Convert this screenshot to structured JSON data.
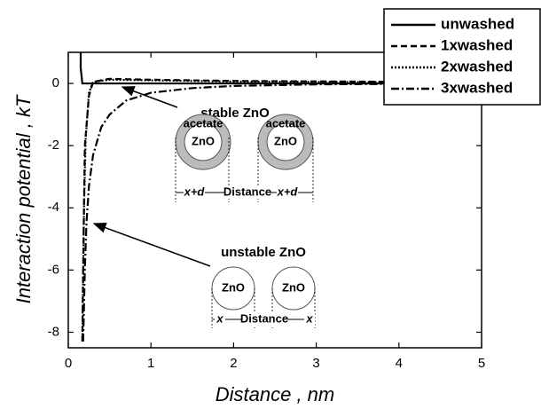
{
  "chart_data": {
    "type": "line",
    "xlabel": "Distance , nm",
    "ylabel": "Interaction potential , kT",
    "xlim": [
      0,
      5
    ],
    "xticks": [
      0,
      1,
      2,
      3,
      4,
      5
    ],
    "ylim": [
      -8.5,
      1
    ],
    "yticks": [
      0,
      -2,
      -4,
      -6,
      -8
    ],
    "legend": "upper right",
    "series": [
      {
        "name": "unwashed",
        "color": "#000000",
        "dash": "solid",
        "x": [
          0.15,
          0.15,
          0.17,
          1,
          5
        ],
        "values": [
          1,
          0.5,
          0,
          0,
          0
        ]
      },
      {
        "name": "1xwashed",
        "color": "#000000",
        "dash": "dashed",
        "x": [
          0.17,
          0.18,
          0.19,
          0.2,
          0.25,
          0.3,
          0.5,
          1,
          2,
          5
        ],
        "values": [
          -8.3,
          -6,
          -4,
          -2,
          -0.4,
          0.05,
          0.15,
          0.12,
          0.08,
          0.04
        ]
      },
      {
        "name": "2xwashed",
        "color": "#000000",
        "dash": "dotted",
        "x": [
          0.17,
          0.18,
          0.19,
          0.21,
          0.25,
          0.3,
          0.5,
          1,
          2,
          5
        ],
        "values": [
          -8.2,
          -6,
          -4,
          -1.8,
          -0.3,
          0.05,
          0.12,
          0.1,
          0.06,
          0.03
        ]
      },
      {
        "name": "3xwashed",
        "color": "#000000",
        "dash": "dashdot",
        "x": [
          0.18,
          0.2,
          0.22,
          0.25,
          0.3,
          0.4,
          0.5,
          0.7,
          1,
          1.5,
          2,
          3,
          5
        ],
        "values": [
          -8.3,
          -6,
          -4.5,
          -3.3,
          -2.3,
          -1.4,
          -1,
          -0.55,
          -0.3,
          -0.15,
          -0.08,
          -0.03,
          0
        ]
      }
    ],
    "annotations": {
      "stable": {
        "title": "stable ZnO",
        "shell": "acetate",
        "core": "ZnO",
        "distance": "Distance",
        "gap": "x+d"
      },
      "unstable": {
        "title": "unstable ZnO",
        "core": "ZnO",
        "distance": "Distance",
        "gap": "x"
      }
    }
  }
}
